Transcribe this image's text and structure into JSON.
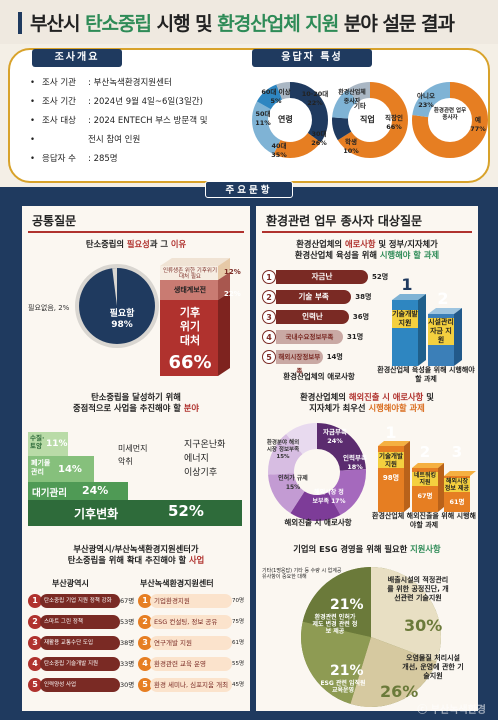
{
  "title": {
    "part1": "부산시 ",
    "part2": "탄소중립",
    "part3": " 시행 및 ",
    "part4": "환경산업체 지원",
    "part5": " 분야 설문 결과"
  },
  "overview": {
    "tag": "조사개요",
    "items": [
      {
        "k": "조사 기관",
        "v": ": 부산녹색환경지원센터"
      },
      {
        "k": "조사 기간",
        "v": ": 2024년 9월 4일~6일(3일간)"
      },
      {
        "k": "조사 대상",
        "v": ": 2024 ENTECH 부스 방문객 및"
      },
      {
        "k": "",
        "v": "전시 참여 인원"
      },
      {
        "k": "응답자 수",
        "v": ": 285명"
      }
    ]
  },
  "respondents": {
    "tag": "응답자 특성",
    "donut1": {
      "center": "연령",
      "labels": [
        "60대 이상 5%",
        "10·20대 22%",
        "50대 11%",
        "30대 26%",
        "40대 35%"
      ]
    },
    "donut2": {
      "center": "직업",
      "labels": [
        "환경산업체 종사자",
        "기타",
        "직장인 66%",
        "학생 10%"
      ]
    },
    "donut3": {
      "center": "환경관련 업무 종사자",
      "labels": [
        "예 77%",
        "아니오 23%"
      ]
    }
  },
  "main_tag": "주요문항",
  "left": {
    "title": "공통질문",
    "q1": {
      "a": "탄소중립의 ",
      "b": "필요성",
      "c": "과 그 ",
      "d": "이유"
    },
    "q1_pie": {
      "outer": "필요없음, 2%",
      "inner": "필요함 98%"
    },
    "q1_box": {
      "top": "인류생존 위한 기후위기 대처 필요",
      "l2": "생태계보전",
      "big": "기후 위기 대처",
      "pct": "66%",
      "s1": "12%",
      "s2": "22%"
    },
    "q2": {
      "l1": "탄소중립을 달성하기 위해",
      "l2a": "중점적으로 사업을 추진해야 할 ",
      "l2b": "분야"
    },
    "q2_strips": [
      {
        "label": "기후변화",
        "pct": "52%"
      },
      {
        "label": "대기관리",
        "pct": "24%"
      },
      {
        "label": "폐기물관리",
        "pct": "14%"
      },
      {
        "label": "수질·토양",
        "pct": "11%"
      }
    ],
    "q2_others": [
      "미세먼지",
      "악취",
      "지구온난화",
      "에너지",
      "이상기후"
    ],
    "q3": {
      "l1": "부산광역시/부산녹색환경지원센터가",
      "l2a": "탄소중립을 위해 확대 추진해야 할 ",
      "l2b": "사업"
    },
    "q3_col1": "부산광역시",
    "q3_col2": "부산녹색환경지원센터",
    "q3_items1": [
      {
        "n": "1",
        "t": "탄소중립 기업 지원 정책 강화",
        "v": "67명"
      },
      {
        "n": "2",
        "t": "스마트 그린 정책",
        "v": "53명"
      },
      {
        "n": "3",
        "t": "재활용 교통수단 도입",
        "v": "38명"
      },
      {
        "n": "4",
        "t": "탄소중립 기술개발 지원",
        "v": "33명"
      },
      {
        "n": "5",
        "t": "인력양성 사업",
        "v": "30명"
      }
    ],
    "q3_items2": [
      {
        "n": "1",
        "t": "기업환경지원",
        "v": "70명"
      },
      {
        "n": "2",
        "t": "ESG 컨설팅, 정보 공유",
        "v": "75명"
      },
      {
        "n": "3",
        "t": "연구개발 지원",
        "v": "61명"
      },
      {
        "n": "4",
        "t": "환경관련 교육 운영",
        "v": "55명"
      },
      {
        "n": "5",
        "t": "환경 세미나, 심포지움 개최",
        "v": "45명"
      }
    ]
  },
  "right": {
    "title": "환경관련 업무 종사자 대상질문",
    "q1": {
      "l1a": "환경산업체의 ",
      "l1b": "애로사항",
      "l1c": " 및 정부/지자체가",
      "l2a": "환경산업체 육성을 위해 ",
      "l2b": "시행해야 할 과제"
    },
    "q1_bars": [
      {
        "n": "1",
        "t": "자금난",
        "v": "52명"
      },
      {
        "n": "2",
        "t": "기술 부족",
        "v": "38명"
      },
      {
        "n": "3",
        "t": "인력난",
        "v": "36명"
      },
      {
        "n": "4",
        "t": "국내수요정보부족",
        "v": "31명"
      },
      {
        "n": "5",
        "t": "해외시장정보부족",
        "v": "14명"
      }
    ],
    "q1_cap1": "환경산업체의 애로사항",
    "q1_podium": {
      "n1": "1",
      "n2": "2",
      "t1": "기술개발 지원",
      "t2": "시설관리 자금 지원"
    },
    "q1_cap2": "환경산업체 육성을 위해 시행해야할 과제",
    "q2": {
      "l1a": "환경산업체의 ",
      "l1b": "해외진출 시 애로사항",
      "l1c": " 및",
      "l2a": "지자체가 최우선 ",
      "l2b": "시행해야할 과제"
    },
    "q2_donut_labels": [
      "자금부족 24%",
      "인력부족 18%",
      "해외시장 정보부족 17%",
      "인허가 규제 15%",
      "환경분야 해외시장 정보부족 15%"
    ],
    "q2_podium": {
      "n1": "1",
      "n2": "2",
      "n3": "3",
      "t1": "기술개발 지원",
      "v1": "98명",
      "t2": "네트워킹 지원",
      "v2": "67명",
      "t3": "해외시장 정보 제공",
      "v3": "61명"
    },
    "q2_cap1": "해외진출 시 애로사항",
    "q2_cap2": "환경산업체 해외진출을 위해 시행해야할 과제",
    "q3": {
      "a": "기업의 ESG 경영을 위해 필요한 ",
      "b": "지원사항"
    },
    "q3_pie": [
      {
        "t": "배출시설의 적정관리를 위한 공정진단, 개선관련 기술지원",
        "p": "30%"
      },
      {
        "t": "오염물질 처리시설 개선, 운영에 관한 기술지원",
        "p": "26%"
      },
      {
        "t": "ESG 관련 임직원 교육운영",
        "p": "21%"
      },
      {
        "t": "환경관련 인허가 제도 변경 관련 정보 제공",
        "p": "21%"
      },
      {
        "t": "기타(1명응답) 기타 등 수량 시 업계공유사항이 중요한 대해",
        "p": ""
      }
    ]
  },
  "watermark": "ⓒ 부산녹색환경"
}
